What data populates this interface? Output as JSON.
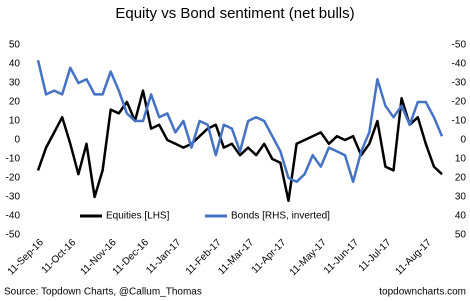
{
  "chart_data": {
    "type": "line",
    "title": "Equity vs Bond sentiment (net bulls)",
    "categories": [
      "11-Sep-16",
      null,
      null,
      null,
      "11-Oct-16",
      null,
      null,
      null,
      null,
      "11-Nov-16",
      null,
      null,
      null,
      "11-Dec-16",
      null,
      null,
      null,
      "11-Jan-17",
      null,
      null,
      null,
      null,
      "11-Feb-17",
      null,
      null,
      null,
      "11-Mar-17",
      null,
      null,
      null,
      "11-Apr-17",
      null,
      null,
      null,
      null,
      "11-May-17",
      null,
      null,
      null,
      "11-Jun-17",
      null,
      null,
      null,
      "11-Jul-17",
      null,
      null,
      null,
      null,
      "11-Aug-17",
      null,
      null
    ],
    "series": [
      {
        "name": "Equities [LHS]",
        "color": "#000000",
        "axis": "y",
        "values": [
          -16,
          -4,
          4,
          12,
          -2,
          -18,
          -2,
          -30,
          -16,
          16,
          14,
          20,
          10,
          26,
          6,
          8,
          0,
          -2,
          -4,
          -2,
          2,
          6,
          8,
          -4,
          -2,
          -8,
          -4,
          -8,
          -2,
          -10,
          -12,
          -32,
          -2,
          0,
          2,
          4,
          -2,
          2,
          0,
          2,
          -8,
          -2,
          10,
          -14,
          -16,
          22,
          8,
          12,
          -2,
          -14,
          -18
        ]
      },
      {
        "name": "Bonds [RHS, inverted]",
        "color": "#4472c4",
        "axis": "y2",
        "values": [
          -42,
          -24,
          -26,
          -24,
          -38,
          -30,
          -32,
          -24,
          -24,
          -36,
          -26,
          -14,
          -10,
          -10,
          -24,
          -12,
          -14,
          -4,
          -10,
          4,
          -10,
          -8,
          8,
          -8,
          -6,
          6,
          -10,
          -12,
          -10,
          -2,
          6,
          20,
          22,
          18,
          8,
          14,
          4,
          6,
          8,
          22,
          6,
          -4,
          -32,
          -18,
          -12,
          -18,
          -8,
          -20,
          -20,
          -12,
          -2
        ]
      }
    ],
    "ylim": [
      -50,
      50
    ],
    "yticks": [
      50,
      40,
      30,
      20,
      10,
      0,
      -10,
      -20,
      -30,
      -40,
      -50
    ],
    "y2lim": [
      -50,
      50
    ],
    "y2ticks": [
      -50,
      -40,
      -30,
      -20,
      -10,
      0,
      10,
      20,
      30,
      40,
      50
    ],
    "y2_inverted": true,
    "source": "Source: Topdown Charts, @Callum_Thomas",
    "website": "topdowncharts.com"
  }
}
